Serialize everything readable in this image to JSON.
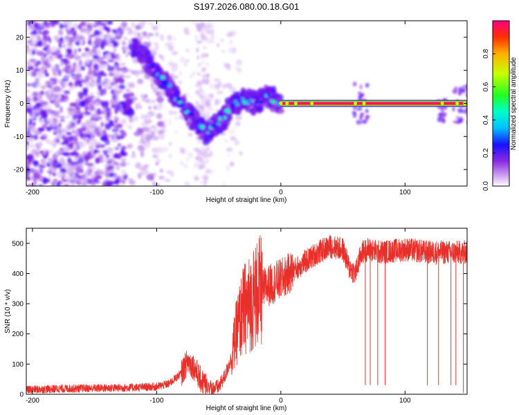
{
  "title": "S197.2026.080.00.18.G01",
  "chart_data": [
    {
      "type": "heatmap",
      "xlabel": "Height of straight line (km)",
      "ylabel": "Frequency (Hz)",
      "xlim": [
        -205,
        150
      ],
      "ylim": [
        -25,
        25
      ],
      "xticks": [
        -200,
        -100,
        0,
        100
      ],
      "yticks": [
        -20,
        -10,
        0,
        10,
        20
      ],
      "colorbar": {
        "label": "Normalized spectral amplitude",
        "range": [
          0,
          1
        ],
        "ticks": [
          0.0,
          0.2,
          0.4,
          0.6,
          0.8
        ]
      },
      "ridge": {
        "x": [
          -120,
          -110,
          -100,
          -90,
          -80,
          -70,
          -60,
          -55,
          -50,
          -45,
          -40,
          -35,
          -30,
          -25,
          -20,
          -15,
          -10,
          -5,
          0,
          10,
          30,
          60,
          100,
          130,
          150
        ],
        "y": [
          18,
          14,
          9,
          5,
          0,
          -5,
          -9,
          -7,
          -6,
          -4,
          -1,
          0,
          1,
          0.5,
          0,
          1,
          2.5,
          1,
          0,
          0,
          0,
          0,
          0,
          0,
          0
        ]
      },
      "strong_line": {
        "x_start": 0,
        "x_end": 150,
        "y": 0
      }
    },
    {
      "type": "line",
      "xlabel": "Height of straight line (km)",
      "ylabel": "SNR (10 * v/v)",
      "xlim": [
        -205,
        150
      ],
      "ylim": [
        0,
        550
      ],
      "xticks": [
        -200,
        -100,
        0,
        100
      ],
      "yticks": [
        0,
        100,
        200,
        300,
        400,
        500
      ],
      "series": [
        {
          "name": "SNR",
          "color": "#e8302a",
          "x": [
            -205,
            -180,
            -150,
            -120,
            -100,
            -90,
            -80,
            -75,
            -70,
            -65,
            -60,
            -55,
            -50,
            -45,
            -40,
            -35,
            -30,
            -25,
            -20,
            -10,
            0,
            10,
            20,
            30,
            40,
            50,
            55,
            60,
            65,
            70,
            80,
            100,
            120,
            140,
            150
          ],
          "y": [
            15,
            18,
            20,
            22,
            25,
            35,
            70,
            110,
            90,
            50,
            30,
            20,
            25,
            60,
            120,
            220,
            280,
            300,
            330,
            360,
            380,
            410,
            440,
            470,
            490,
            480,
            420,
            400,
            470,
            480,
            470,
            480,
            470,
            470,
            470
          ]
        }
      ],
      "dropouts": [
        {
          "x": 68,
          "y": 30
        },
        {
          "x": 72,
          "y": 30
        },
        {
          "x": 78,
          "y": 30
        },
        {
          "x": 84,
          "y": 30
        },
        {
          "x": 118,
          "y": 30
        },
        {
          "x": 127,
          "y": 30
        },
        {
          "x": 137,
          "y": 30
        },
        {
          "x": 141,
          "y": 30
        },
        {
          "x": 147,
          "y": 5
        }
      ]
    }
  ]
}
